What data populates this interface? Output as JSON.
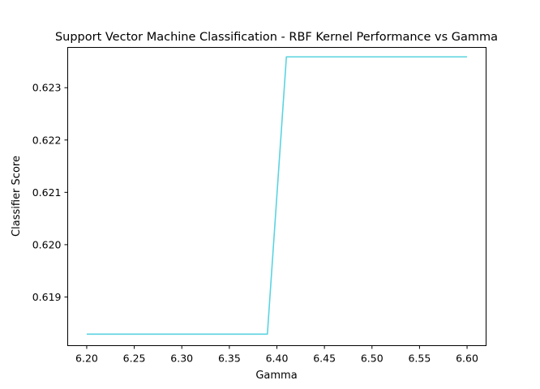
{
  "chart_data": {
    "type": "line",
    "title": "Support Vector Machine Classification - RBF Kernel Performance vs Gamma",
    "xlabel": "Gamma",
    "ylabel": "Classifier Score",
    "xlim": [
      6.18,
      6.62
    ],
    "ylim": [
      0.61807,
      0.62377
    ],
    "grid": false,
    "xticks": [
      6.2,
      6.25,
      6.3,
      6.35,
      6.4,
      6.45,
      6.5,
      6.55,
      6.6
    ],
    "xtick_labels": [
      "6.20",
      "6.25",
      "6.30",
      "6.35",
      "6.40",
      "6.45",
      "6.50",
      "6.55",
      "6.60"
    ],
    "yticks": [
      0.619,
      0.62,
      0.621,
      0.622,
      0.623
    ],
    "ytick_labels": [
      "0.619",
      "0.620",
      "0.621",
      "0.622",
      "0.623"
    ],
    "series": [
      {
        "color": "#5bd3e0",
        "x": [
          6.2,
          6.21,
          6.22,
          6.23,
          6.24,
          6.25,
          6.26,
          6.27,
          6.28,
          6.29,
          6.3,
          6.31,
          6.32,
          6.33,
          6.34,
          6.35,
          6.36,
          6.37,
          6.38,
          6.39,
          6.41,
          6.42,
          6.43,
          6.44,
          6.45,
          6.46,
          6.47,
          6.48,
          6.49,
          6.5,
          6.51,
          6.52,
          6.53,
          6.54,
          6.55,
          6.56,
          6.57,
          6.58,
          6.59,
          6.6
        ],
        "y": [
          0.61829,
          0.61829,
          0.61829,
          0.61829,
          0.61829,
          0.61829,
          0.61829,
          0.61829,
          0.61829,
          0.61829,
          0.61829,
          0.61829,
          0.61829,
          0.61829,
          0.61829,
          0.61829,
          0.61829,
          0.61829,
          0.61829,
          0.61829,
          0.62359,
          0.62359,
          0.62359,
          0.62359,
          0.62359,
          0.62359,
          0.62359,
          0.62359,
          0.62359,
          0.62359,
          0.62359,
          0.62359,
          0.62359,
          0.62359,
          0.62359,
          0.62359,
          0.62359,
          0.62359,
          0.62359,
          0.62359
        ]
      }
    ]
  }
}
